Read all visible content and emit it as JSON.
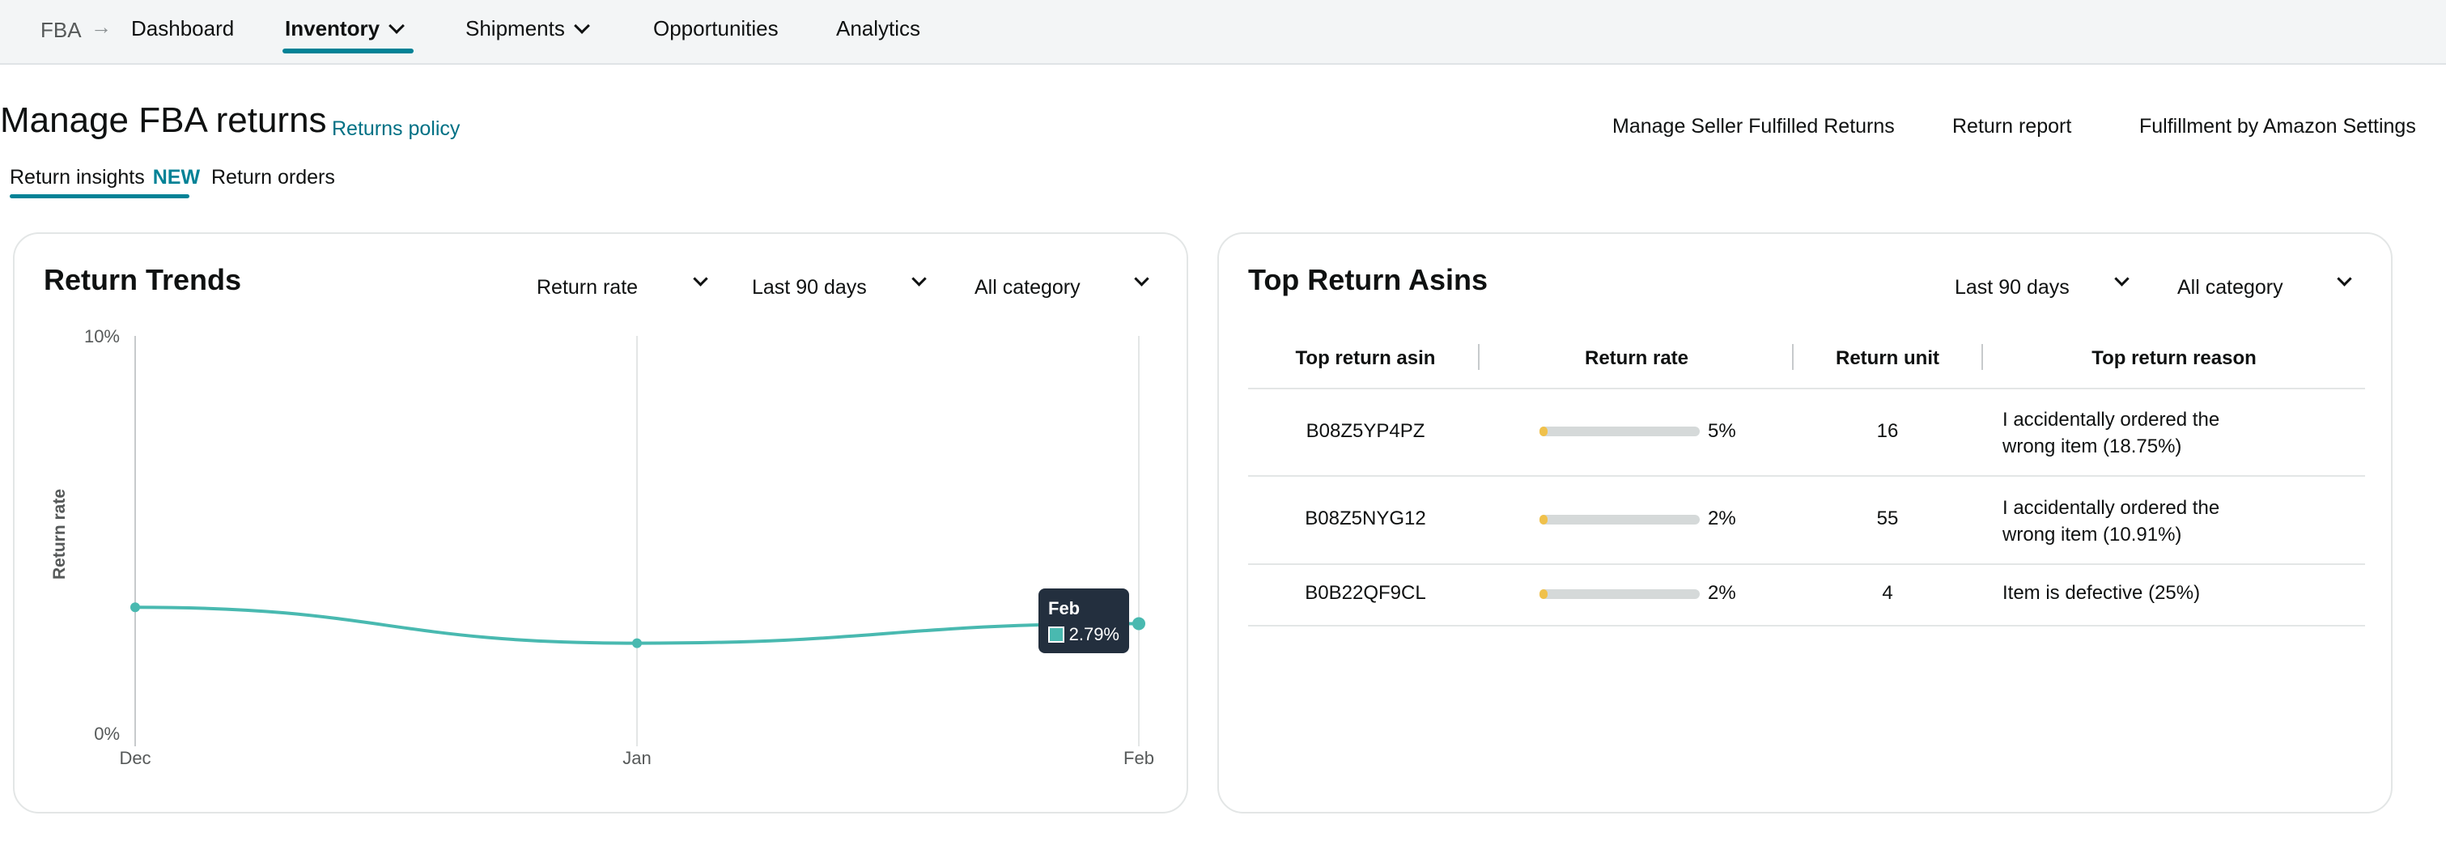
{
  "nav": {
    "breadcrumb": "FBA",
    "items": [
      {
        "label": "Dashboard"
      },
      {
        "label": "Inventory"
      },
      {
        "label": "Shipments"
      },
      {
        "label": "Opportunities"
      },
      {
        "label": "Analytics"
      }
    ]
  },
  "header": {
    "title": "Manage FBA returns",
    "policy_link": "Returns policy",
    "links": [
      "Manage Seller Fulfilled Returns",
      "Return report",
      "Fulfillment by Amazon Settings"
    ]
  },
  "subtabs": {
    "insights": "Return insights",
    "new_badge": "NEW",
    "orders": "Return orders"
  },
  "trends": {
    "title": "Return Trends",
    "metric_dropdown": "Return rate",
    "period_dropdown": "Last 90 days",
    "category_dropdown": "All category",
    "tooltip": {
      "label": "Feb",
      "value": "2.79%"
    }
  },
  "chart_data": {
    "type": "line",
    "categories": [
      "Dec",
      "Jan",
      "Feb"
    ],
    "values": [
      3.2,
      2.3,
      2.79
    ],
    "ylabel": "Return rate",
    "ylim": [
      0,
      10
    ],
    "y_ticks": [
      "0%",
      "10%"
    ],
    "grid": "vertical",
    "color": "#49b9b0"
  },
  "asins": {
    "title": "Top Return Asins",
    "period_dropdown": "Last 90 days",
    "category_dropdown": "All category",
    "columns": [
      "Top return asin",
      "Return rate",
      "Return unit",
      "Top return reason"
    ],
    "rows": [
      {
        "asin": "B08Z5YP4PZ",
        "rate": 0.05,
        "rate_label": "5%",
        "units": "16",
        "reason_1": "I accidentally ordered the",
        "reason_2": "wrong item (18.75%)"
      },
      {
        "asin": "B08Z5NYG12",
        "rate": 0.02,
        "rate_label": "2%",
        "units": "55",
        "reason_1": "I accidentally ordered the",
        "reason_2": "wrong item (10.91%)"
      },
      {
        "asin": "B0B22QF9CL",
        "rate": 0.02,
        "rate_label": "2%",
        "units": "4",
        "reason_1": "Item is defective (25%)",
        "reason_2": ""
      }
    ]
  }
}
